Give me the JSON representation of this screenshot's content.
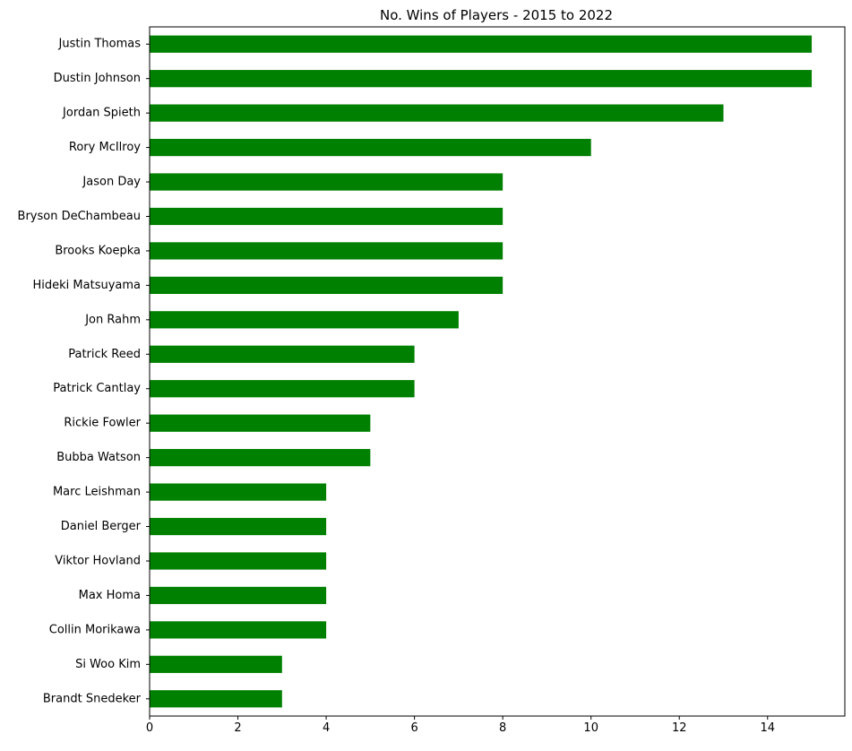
{
  "chart_data": {
    "type": "bar",
    "orientation": "horizontal",
    "title": "No. Wins of Players - 2015 to 2022",
    "xlabel": "",
    "ylabel": "",
    "categories": [
      "Justin Thomas",
      "Dustin Johnson",
      "Jordan Spieth",
      "Rory McIlroy",
      "Jason Day",
      "Bryson DeChambeau",
      "Brooks Koepka",
      "Hideki Matsuyama",
      "Jon Rahm",
      "Patrick Reed",
      "Patrick Cantlay",
      "Rickie Fowler",
      "Bubba Watson",
      "Marc Leishman",
      "Daniel Berger",
      "Viktor Hovland",
      "Max Homa",
      "Collin Morikawa",
      "Si Woo Kim",
      "Brandt Snedeker"
    ],
    "values": [
      15,
      15,
      13,
      10,
      8,
      8,
      8,
      8,
      7,
      6,
      6,
      5,
      5,
      4,
      4,
      4,
      4,
      4,
      3,
      3
    ],
    "xlim": [
      0,
      15.75
    ],
    "xticks": [
      0,
      2,
      4,
      6,
      8,
      10,
      12,
      14
    ],
    "grid": false,
    "legend": "none",
    "bar_color": "#008000"
  }
}
